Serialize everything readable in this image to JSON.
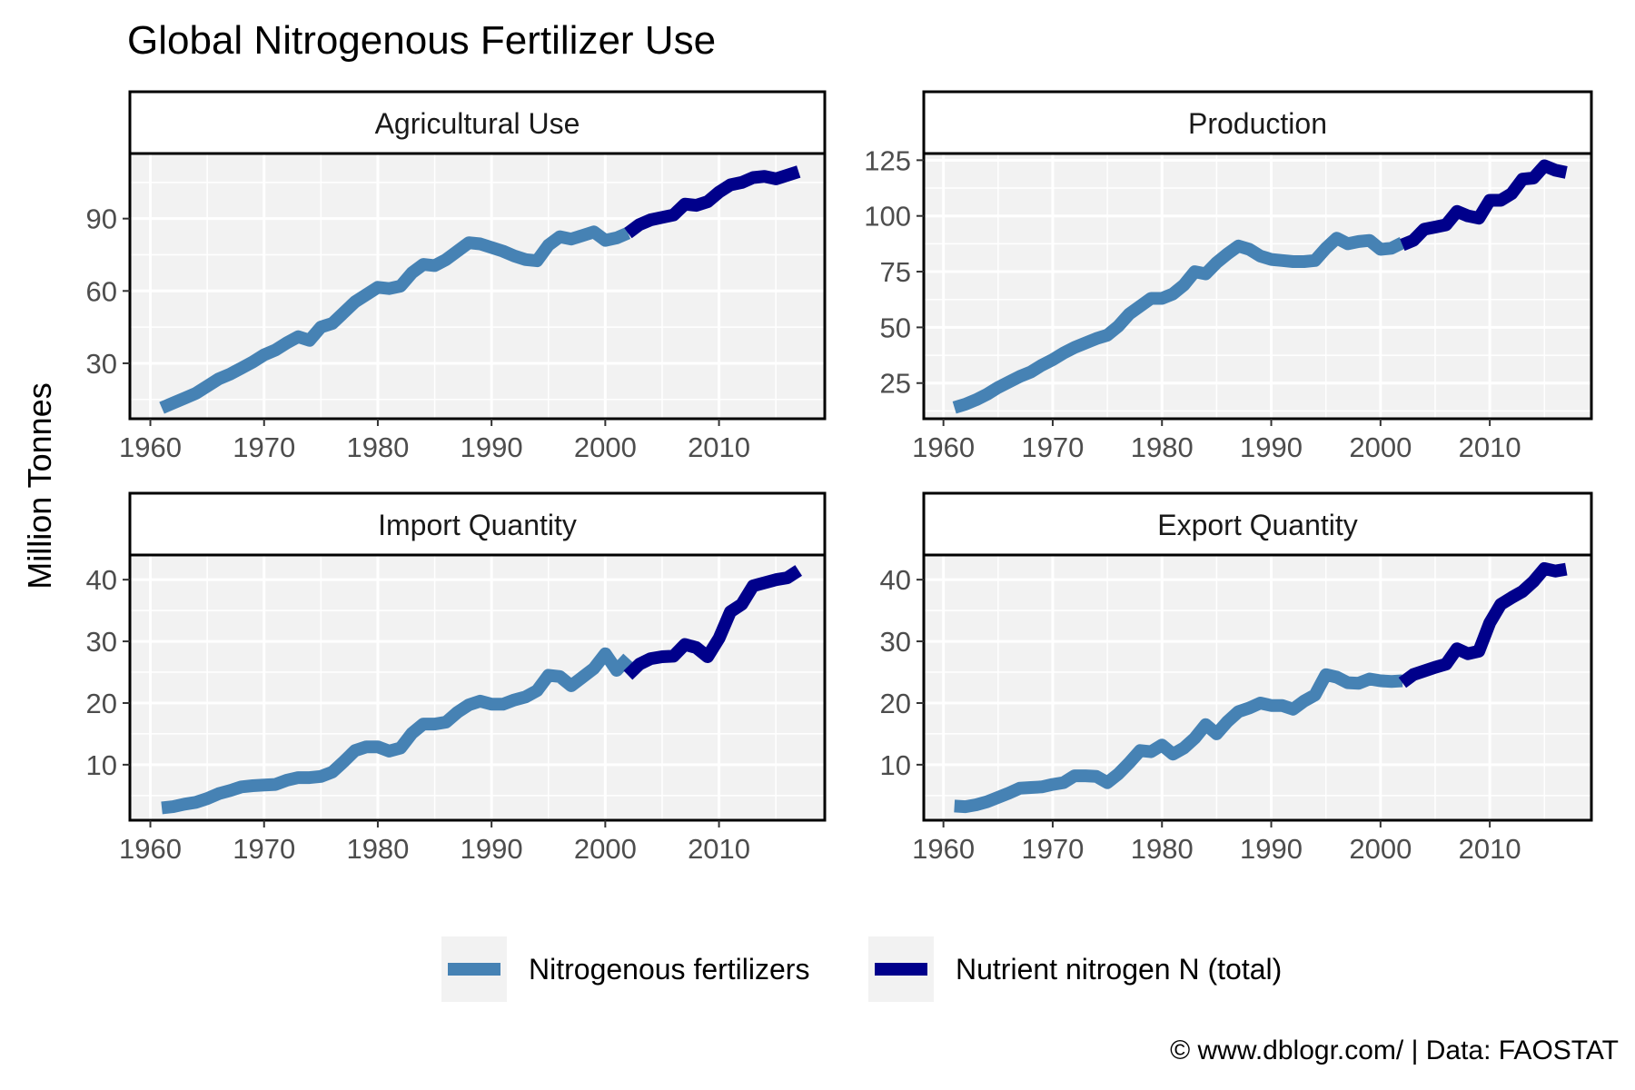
{
  "title": "Global Nitrogenous Fertilizer Use",
  "ylabel": "Million Tonnes",
  "caption": "© www.dblogr.com/ | Data: FAOSTAT",
  "colors": {
    "panel_bg": "#f2f2f2",
    "grid": "#ffffff",
    "series_fertilizers": "#4682b4",
    "series_nutrient": "#00008b",
    "strip_bg": "#ffffff",
    "axis_text": "#4d4d4d"
  },
  "legend": {
    "position": "bottom",
    "items": [
      {
        "label": "Nitrogenous fertilizers",
        "color": "#4682b4"
      },
      {
        "label": "Nutrient nitrogen N (total)",
        "color": "#00008b"
      }
    ]
  },
  "chart_data": [
    {
      "type": "line",
      "title": "Agricultural Use",
      "xlabel": "",
      "ylabel": "Million Tonnes",
      "xlim": [
        1958.2,
        2019.3
      ],
      "ylim": [
        7,
        117
      ],
      "xticks": [
        1960,
        1970,
        1980,
        1990,
        2000,
        2010
      ],
      "yticks": [
        30,
        60,
        90
      ],
      "series": [
        {
          "name": "Nitrogenous fertilizers",
          "color": "#4682b4",
          "x": [
            1961,
            1962,
            1963,
            1964,
            1965,
            1966,
            1967,
            1968,
            1969,
            1970,
            1971,
            1972,
            1973,
            1974,
            1975,
            1976,
            1977,
            1978,
            1979,
            1980,
            1981,
            1982,
            1983,
            1984,
            1985,
            1986,
            1987,
            1988,
            1989,
            1990,
            1991,
            1992,
            1993,
            1994,
            1995,
            1996,
            1997,
            1998,
            1999,
            2000,
            2001,
            2002
          ],
          "y": [
            11.5,
            13.5,
            15.5,
            17.5,
            20.5,
            23.5,
            25.5,
            28,
            30.5,
            33.5,
            35.5,
            38.5,
            41,
            39.5,
            45,
            46.5,
            51,
            55.5,
            58.5,
            61.5,
            61,
            62,
            67.5,
            71,
            70.5,
            73,
            76.5,
            80,
            79.5,
            78,
            76.5,
            74.5,
            73,
            72.5,
            79,
            82.5,
            81.5,
            83,
            84.5,
            81,
            82,
            84
          ]
        },
        {
          "name": "Nutrient nitrogen N (total)",
          "color": "#00008b",
          "x": [
            2002,
            2003,
            2004,
            2005,
            2006,
            2007,
            2008,
            2009,
            2010,
            2011,
            2012,
            2013,
            2014,
            2015,
            2016,
            2017
          ],
          "y": [
            84,
            87.5,
            89.5,
            90.5,
            91.5,
            96,
            95.5,
            97,
            101,
            104,
            105,
            107,
            107.5,
            106.5,
            108,
            109.5
          ]
        }
      ]
    },
    {
      "type": "line",
      "title": "Production",
      "xlabel": "",
      "ylabel": "Million Tonnes",
      "xlim": [
        1958.2,
        2019.3
      ],
      "ylim": [
        9,
        128
      ],
      "xticks": [
        1960,
        1970,
        1980,
        1990,
        2000,
        2010
      ],
      "yticks": [
        25,
        50,
        75,
        100,
        125
      ],
      "series": [
        {
          "name": "Nitrogenous fertilizers",
          "color": "#4682b4",
          "x": [
            1961,
            1962,
            1963,
            1964,
            1965,
            1966,
            1967,
            1968,
            1969,
            1970,
            1971,
            1972,
            1973,
            1974,
            1975,
            1976,
            1977,
            1978,
            1979,
            1980,
            1981,
            1982,
            1983,
            1984,
            1985,
            1986,
            1987,
            1988,
            1989,
            1990,
            1991,
            1992,
            1993,
            1994,
            1995,
            1996,
            1997,
            1998,
            1999,
            2000,
            2001,
            2002
          ],
          "y": [
            14,
            15.5,
            17.5,
            20,
            23,
            25.5,
            28,
            30,
            33,
            35.5,
            38.5,
            41,
            43,
            45,
            46.5,
            50.5,
            56,
            59.5,
            63,
            63,
            65,
            69,
            75,
            74,
            79,
            83,
            86.5,
            85,
            82,
            80.5,
            80,
            79.5,
            79.5,
            80,
            85.5,
            90,
            87.5,
            88.5,
            89,
            85,
            85.5,
            88
          ]
        },
        {
          "name": "Nutrient nitrogen N (total)",
          "color": "#00008b",
          "x": [
            2002,
            2003,
            2004,
            2005,
            2006,
            2007,
            2008,
            2009,
            2010,
            2011,
            2012,
            2013,
            2014,
            2015,
            2016,
            2017
          ],
          "y": [
            87,
            89,
            94,
            95,
            96,
            102,
            100,
            99,
            107,
            107,
            110,
            116.5,
            117,
            122.5,
            120.5,
            119.5
          ]
        }
      ]
    },
    {
      "type": "line",
      "title": "Import Quantity",
      "xlabel": "",
      "ylabel": "Million Tonnes",
      "xlim": [
        1958.2,
        2019.3
      ],
      "ylim": [
        1,
        44
      ],
      "xticks": [
        1960,
        1970,
        1980,
        1990,
        2000,
        2010
      ],
      "yticks": [
        10,
        20,
        30,
        40
      ],
      "series": [
        {
          "name": "Nitrogenous fertilizers",
          "color": "#4682b4",
          "x": [
            1961,
            1962,
            1963,
            1964,
            1965,
            1966,
            1967,
            1968,
            1969,
            1970,
            1971,
            1972,
            1973,
            1974,
            1975,
            1976,
            1977,
            1978,
            1979,
            1980,
            1981,
            1982,
            1983,
            1984,
            1985,
            1986,
            1987,
            1988,
            1989,
            1990,
            1991,
            1992,
            1993,
            1994,
            1995,
            1996,
            1997,
            1998,
            1999,
            2000,
            2001,
            2002
          ],
          "y": [
            3,
            3.2,
            3.6,
            3.9,
            4.5,
            5.3,
            5.8,
            6.4,
            6.6,
            6.7,
            6.8,
            7.5,
            7.9,
            7.9,
            8.1,
            8.8,
            10.5,
            12.3,
            12.9,
            12.9,
            12.2,
            12.7,
            15.1,
            16.6,
            16.6,
            16.9,
            18.5,
            19.7,
            20.3,
            19.8,
            19.8,
            20.5,
            21,
            22,
            24.5,
            24.3,
            22.8,
            24.2,
            25.6,
            28,
            25.3,
            27.3
          ]
        },
        {
          "name": "Nutrient nitrogen N (total)",
          "color": "#00008b",
          "x": [
            2002,
            2003,
            2004,
            2005,
            2006,
            2007,
            2008,
            2009,
            2010,
            2011,
            2012,
            2013,
            2014,
            2015,
            2016,
            2017
          ],
          "y": [
            24.5,
            26.3,
            27.2,
            27.5,
            27.6,
            29.5,
            29,
            27.5,
            30.5,
            34.8,
            36,
            39,
            39.5,
            40,
            40.3,
            41.5
          ]
        }
      ]
    },
    {
      "type": "line",
      "title": "Export Quantity",
      "xlabel": "",
      "ylabel": "Million Tonnes",
      "xlim": [
        1958.2,
        2019.3
      ],
      "ylim": [
        1,
        44
      ],
      "xticks": [
        1960,
        1970,
        1980,
        1990,
        2000,
        2010
      ],
      "yticks": [
        10,
        20,
        30,
        40
      ],
      "series": [
        {
          "name": "Nitrogenous fertilizers",
          "color": "#4682b4",
          "x": [
            1961,
            1962,
            1963,
            1964,
            1965,
            1966,
            1967,
            1968,
            1969,
            1970,
            1971,
            1972,
            1973,
            1974,
            1975,
            1976,
            1977,
            1978,
            1979,
            1980,
            1981,
            1982,
            1983,
            1984,
            1985,
            1986,
            1987,
            1988,
            1989,
            1990,
            1991,
            1992,
            1993,
            1994,
            1995,
            1996,
            1997,
            1998,
            1999,
            2000,
            2001,
            2002
          ],
          "y": [
            3.3,
            3.2,
            3.5,
            4,
            4.7,
            5.4,
            6.2,
            6.3,
            6.4,
            6.8,
            7.1,
            8.2,
            8.2,
            8.1,
            7.1,
            8.5,
            10.3,
            12.3,
            12.1,
            13.2,
            11.7,
            12.7,
            14.3,
            16.5,
            15,
            17,
            18.6,
            19.2,
            20,
            19.6,
            19.6,
            19,
            20.3,
            21.3,
            24.6,
            24.2,
            23.3,
            23.2,
            23.9,
            23.6,
            23.5,
            23.6
          ]
        },
        {
          "name": "Nutrient nitrogen N (total)",
          "color": "#00008b",
          "x": [
            2002,
            2003,
            2004,
            2005,
            2006,
            2007,
            2008,
            2009,
            2010,
            2011,
            2012,
            2013,
            2014,
            2015,
            2016,
            2017
          ],
          "y": [
            23.3,
            24.6,
            25.2,
            25.8,
            26.3,
            28.8,
            28,
            28.4,
            33,
            36,
            37.1,
            38.1,
            39.7,
            41.8,
            41.4,
            41.7
          ]
        }
      ]
    }
  ]
}
